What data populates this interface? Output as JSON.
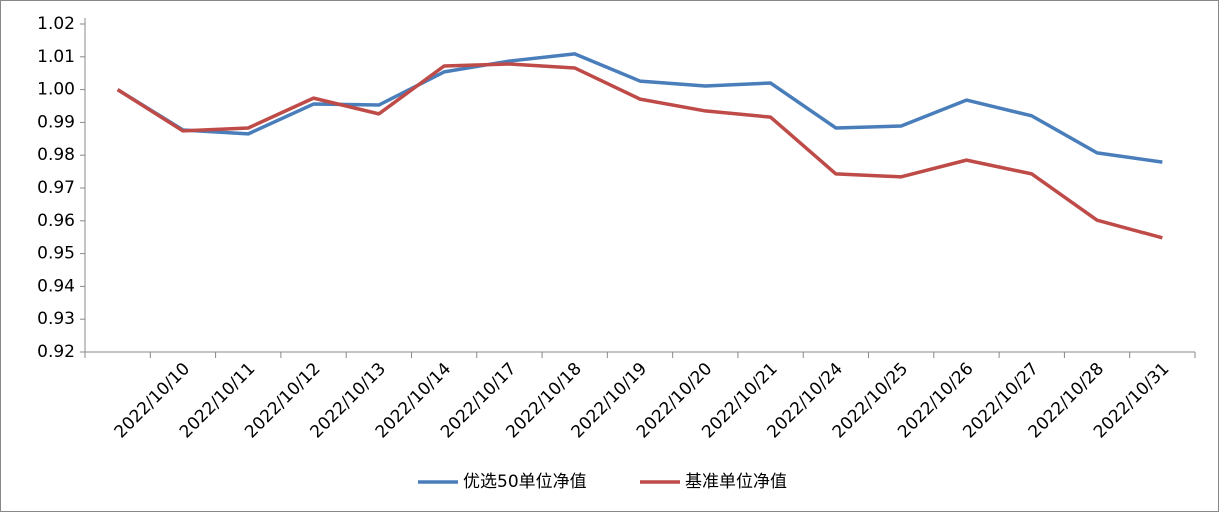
{
  "chart_data": {
    "type": "line",
    "categories": [
      null,
      "2022/10/10",
      "2022/10/11",
      "2022/10/12",
      "2022/10/13",
      "2022/10/14",
      "2022/10/17",
      "2022/10/18",
      "2022/10/19",
      "2022/10/20",
      "2022/10/21",
      "2022/10/24",
      "2022/10/25",
      "2022/10/26",
      "2022/10/27",
      "2022/10/28",
      "2022/10/31"
    ],
    "series": [
      {
        "name": "优选50单位净值",
        "color": "#4a7ebb",
        "values": [
          1.0,
          0.9877,
          0.9865,
          0.9956,
          0.9953,
          1.0054,
          1.0087,
          1.0109,
          1.0026,
          1.0011,
          1.002,
          0.9883,
          0.9889,
          0.9968,
          0.992,
          0.9807,
          0.9779
        ]
      },
      {
        "name": "基准单位净值",
        "color": "#be4b48",
        "values": [
          1.0,
          0.9874,
          0.9883,
          0.9974,
          0.9926,
          1.0072,
          1.0078,
          1.0066,
          0.9971,
          0.9935,
          0.9916,
          0.9743,
          0.9734,
          0.9785,
          0.9743,
          0.9602,
          0.9548
        ]
      }
    ],
    "ylim": [
      0.92,
      1.02
    ],
    "yticks": [
      0.92,
      0.93,
      0.94,
      0.95,
      0.96,
      0.97,
      0.98,
      0.99,
      {
        "value": 1.0,
        "label": "1.00"
      },
      1.01,
      1.02
    ],
    "legend": "bottom"
  }
}
